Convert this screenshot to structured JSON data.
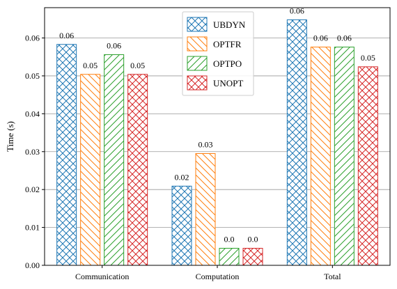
{
  "chart_data": {
    "type": "bar",
    "categories": [
      "Communication",
      "Computation",
      "Total"
    ],
    "series": [
      {
        "name": "UBDYN",
        "values": [
          0.0583,
          0.0209,
          0.0648
        ],
        "labels": [
          "0.06",
          "0.02",
          "0.06"
        ],
        "color": "#1f77b4",
        "hatch": "cross"
      },
      {
        "name": "OPTFR",
        "values": [
          0.0504,
          0.0295,
          0.0576
        ],
        "labels": [
          "0.05",
          "0.03",
          "0.06"
        ],
        "color": "#ff7f0e",
        "hatch": "backslash"
      },
      {
        "name": "OPTPO",
        "values": [
          0.0556,
          0.0045,
          0.0576
        ],
        "labels": [
          "0.06",
          "0.0",
          "0.06"
        ],
        "color": "#2ca02c",
        "hatch": "slash"
      },
      {
        "name": "UNOPT",
        "values": [
          0.0504,
          0.0045,
          0.0524
        ],
        "labels": [
          "0.05",
          "0.0",
          "0.05"
        ],
        "color": "#d62728",
        "hatch": "cross"
      }
    ],
    "title": "",
    "xlabel": "",
    "ylabel": "Time (s)",
    "ylim": [
      0,
      0.068
    ],
    "yticks": [
      "0.00",
      "0.01",
      "0.02",
      "0.03",
      "0.04",
      "0.05",
      "0.06"
    ],
    "grid": "horizontal",
    "legend_position": "top-center"
  }
}
